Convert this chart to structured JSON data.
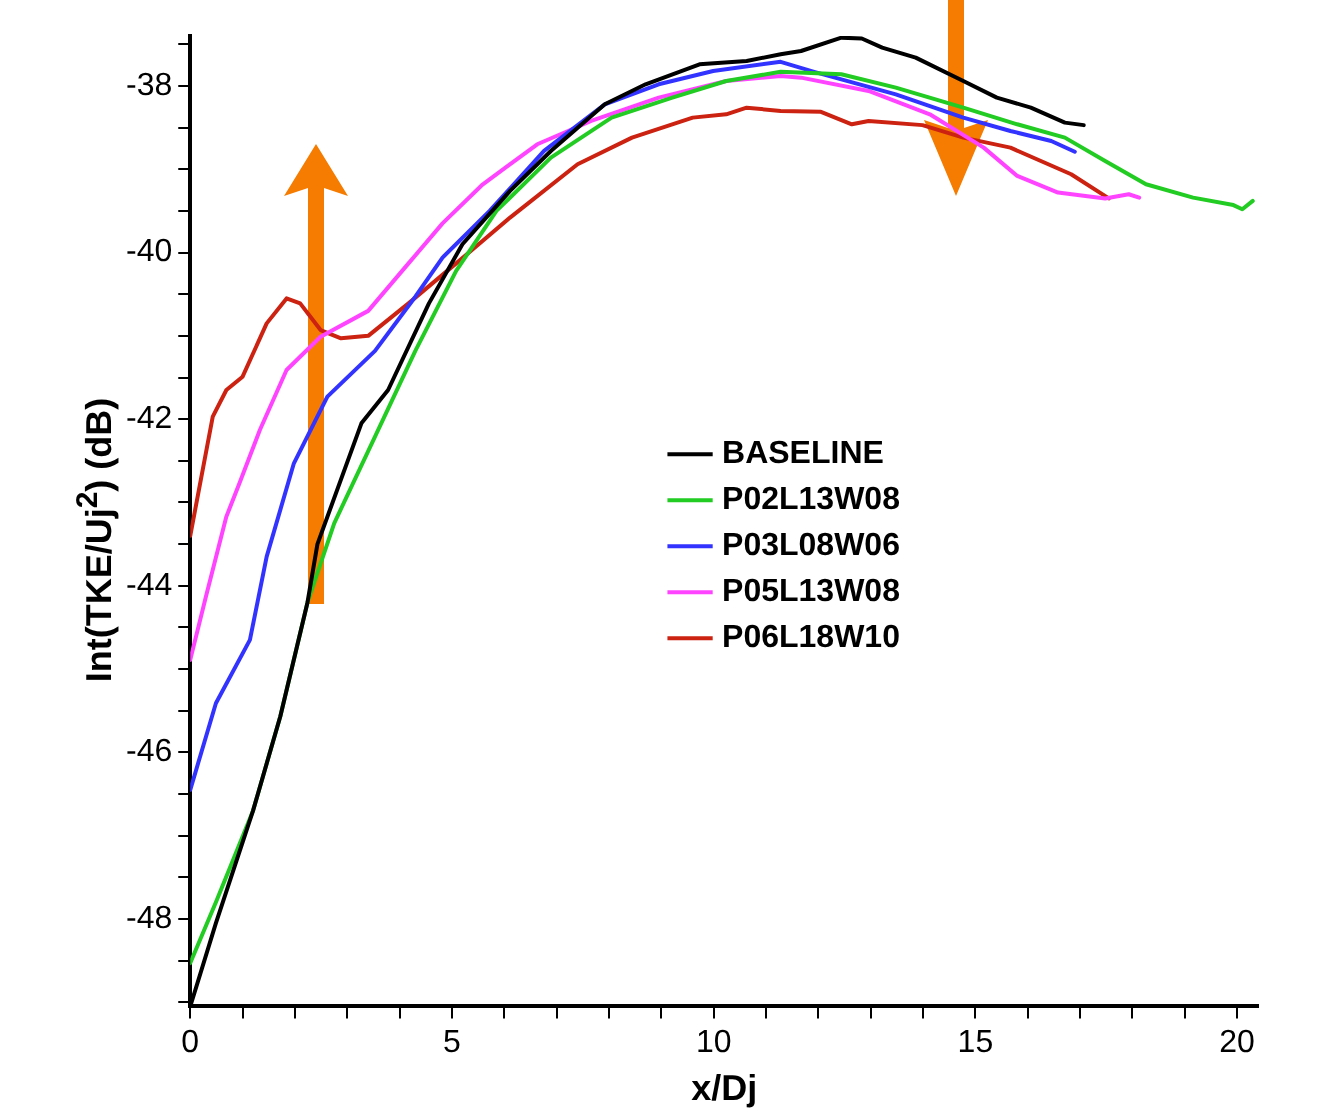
{
  "chart_data": {
    "type": "line",
    "xlabel": "x/Dj",
    "ylabel": "Int(TKE/Uj$^{2}$) (dB)",
    "xlim": [
      0,
      20.4
    ],
    "ylim": [
      -49.05,
      -37.4
    ],
    "xticks": [
      0,
      {
        "value": 1,
        "label": null
      },
      {
        "value": 2,
        "label": null
      },
      {
        "value": 3,
        "label": null
      },
      {
        "value": 4,
        "label": null
      },
      5,
      {
        "value": 6,
        "label": null
      },
      {
        "value": 7,
        "label": null
      },
      {
        "value": 8,
        "label": null
      },
      {
        "value": 9,
        "label": null
      },
      10,
      {
        "value": 11,
        "label": null
      },
      {
        "value": 12,
        "label": null
      },
      {
        "value": 13,
        "label": null
      },
      {
        "value": 14,
        "label": null
      },
      15,
      {
        "value": 16,
        "label": null
      },
      {
        "value": 17,
        "label": null
      },
      {
        "value": 18,
        "label": null
      },
      {
        "value": 19,
        "label": null
      },
      20
    ],
    "yticks": [
      {
        "value": -49,
        "label": null
      },
      {
        "value": -48.5,
        "label": null
      },
      -48,
      {
        "value": -47.5,
        "label": null
      },
      {
        "value": -47,
        "label": null
      },
      {
        "value": -46.5,
        "label": null
      },
      -46,
      {
        "value": -45.5,
        "label": null
      },
      {
        "value": -45,
        "label": null
      },
      {
        "value": -44.5,
        "label": null
      },
      -44,
      {
        "value": -43.5,
        "label": null
      },
      {
        "value": -43,
        "label": null
      },
      {
        "value": -42.5,
        "label": null
      },
      -42,
      {
        "value": -41.5,
        "label": null
      },
      {
        "value": -41,
        "label": null
      },
      {
        "value": -40.5,
        "label": null
      },
      -40,
      {
        "value": -39.5,
        "label": null
      },
      {
        "value": -39,
        "label": null
      },
      {
        "value": -38.5,
        "label": null
      },
      -38,
      {
        "value": -37.5,
        "label": null
      }
    ],
    "grid": false,
    "legend": "right",
    "marker": "none",
    "line_style": "solid",
    "series": [
      {
        "name": "BASELINE",
        "color": "#000000",
        "x": [
          0,
          0.49,
          1.2,
          1.72,
          2.24,
          2.43,
          3.27,
          3.78,
          4.56,
          5.2,
          6.11,
          6.89,
          7.92,
          8.7,
          9.73,
          10.63,
          11.28,
          11.67,
          12.44,
          12.83,
          13.22,
          13.86,
          14.77,
          15.41,
          16.06,
          16.71,
          17.07
        ],
        "values": [
          -49.05,
          -48.05,
          -46.7,
          -45.57,
          -44.2,
          -43.5,
          -42.05,
          -41.65,
          -40.61,
          -39.9,
          -39.26,
          -38.78,
          -38.22,
          -37.98,
          -37.74,
          -37.7,
          -37.62,
          -37.58,
          -37.42,
          -37.43,
          -37.54,
          -37.66,
          -37.94,
          -38.14,
          -38.26,
          -38.44,
          -38.47
        ]
      },
      {
        "name": "P02L13W08",
        "color": "#22cc22",
        "x": [
          0,
          0.49,
          1.2,
          1.72,
          2.24,
          2.75,
          3.53,
          4.3,
          5.08,
          5.85,
          6.89,
          8.05,
          9.21,
          10.24,
          11.28,
          12.44,
          13.48,
          14.77,
          15.8,
          16.71,
          17.48,
          18.26,
          19.16,
          19.93,
          20.1,
          20.3
        ],
        "values": [
          -48.53,
          -47.8,
          -46.7,
          -45.57,
          -44.2,
          -43.25,
          -42.21,
          -41.18,
          -40.22,
          -39.5,
          -38.86,
          -38.38,
          -38.14,
          -37.94,
          -37.83,
          -37.86,
          -38.02,
          -38.26,
          -38.46,
          -38.62,
          -38.9,
          -39.18,
          -39.34,
          -39.43,
          -39.48,
          -39.38
        ]
      },
      {
        "name": "P03L08W06",
        "color": "#3333ff",
        "x": [
          0,
          0.49,
          1.14,
          1.46,
          1.98,
          2.62,
          3.53,
          4.3,
          4.82,
          5.72,
          6.76,
          7.92,
          8.95,
          9.99,
          11.28,
          11.92,
          13.48,
          14.77,
          15.67,
          16.45,
          16.9
        ],
        "values": [
          -46.45,
          -45.41,
          -44.65,
          -43.65,
          -42.53,
          -41.73,
          -41.18,
          -40.53,
          -40.06,
          -39.5,
          -38.78,
          -38.22,
          -37.98,
          -37.82,
          -37.71,
          -37.83,
          -38.1,
          -38.38,
          -38.54,
          -38.66,
          -38.79
        ]
      },
      {
        "name": "P05L13W08",
        "color": "#ff44ff",
        "x": [
          0,
          0.3,
          0.69,
          0.94,
          1.33,
          1.84,
          2.49,
          3.4,
          4.17,
          4.82,
          5.59,
          6.63,
          7.66,
          8.95,
          10.24,
          11.28,
          11.67,
          12.96,
          14.13,
          15.16,
          15.8,
          16.58,
          17.48,
          17.93,
          18.13
        ],
        "values": [
          -44.89,
          -44.13,
          -43.17,
          -42.77,
          -42.13,
          -41.41,
          -41.01,
          -40.7,
          -40.13,
          -39.65,
          -39.18,
          -38.7,
          -38.42,
          -38.14,
          -37.94,
          -37.88,
          -37.9,
          -38.06,
          -38.34,
          -38.74,
          -39.08,
          -39.28,
          -39.35,
          -39.3,
          -39.34
        ]
      },
      {
        "name": "P06L18W10",
        "color": "#cc2211",
        "x": [
          0,
          0.43,
          0.69,
          1,
          1.46,
          1.84,
          2.1,
          2.49,
          2.88,
          3.4,
          4.17,
          5.08,
          6.11,
          7.4,
          8.44,
          9.6,
          10.24,
          10.63,
          11.28,
          12.05,
          12.64,
          12.96,
          13.99,
          14.77,
          15.67,
          16.83,
          17.55
        ],
        "values": [
          -43.4,
          -41.97,
          -41.65,
          -41.49,
          -40.85,
          -40.55,
          -40.61,
          -40.93,
          -41.03,
          -41,
          -40.61,
          -40.13,
          -39.58,
          -38.94,
          -38.62,
          -38.38,
          -38.34,
          -38.26,
          -38.3,
          -38.31,
          -38.46,
          -38.42,
          -38.47,
          -38.62,
          -38.74,
          -39.06,
          -39.35
        ]
      }
    ]
  }
}
